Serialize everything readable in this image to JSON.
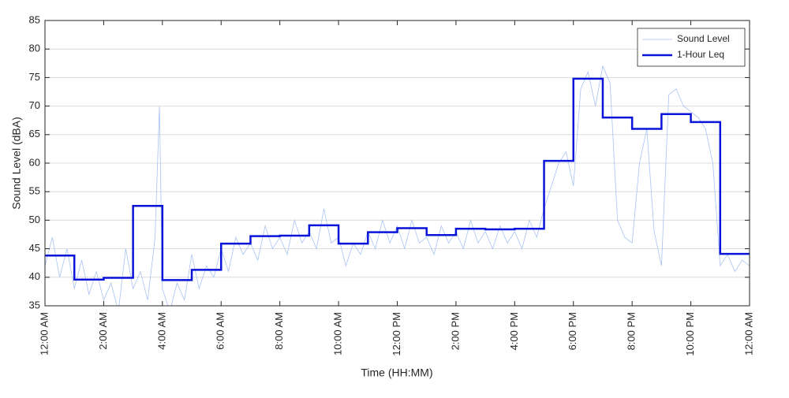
{
  "chart_data": {
    "type": "line",
    "xlabel": "Time (HH:MM)",
    "ylabel": "Sound Level (dBA)",
    "xlim": [
      0,
      24
    ],
    "xticks": [
      {
        "value": 0,
        "label": "12:00 AM"
      },
      {
        "value": 2,
        "label": "2:00 AM"
      },
      {
        "value": 4,
        "label": "4:00 AM"
      },
      {
        "value": 6,
        "label": "6:00 AM"
      },
      {
        "value": 8,
        "label": "8:00 AM"
      },
      {
        "value": 10,
        "label": "10:00 AM"
      },
      {
        "value": 12,
        "label": "12:00 PM"
      },
      {
        "value": 14,
        "label": "2:00 PM"
      },
      {
        "value": 16,
        "label": "4:00 PM"
      },
      {
        "value": 18,
        "label": "6:00 PM"
      },
      {
        "value": 20,
        "label": "8:00 PM"
      },
      {
        "value": 22,
        "label": "10:00 PM"
      },
      {
        "value": 24,
        "label": "12:00 AM"
      }
    ],
    "ylim": [
      35,
      85
    ],
    "yticks": [
      35,
      40,
      45,
      50,
      55,
      60,
      65,
      70,
      75,
      80,
      85
    ],
    "grid": true,
    "legend": "upper right",
    "series": [
      {
        "name": "Sound Level",
        "color": "#a9c3f3",
        "width": 0.8,
        "x": [
          0,
          0.25,
          0.5,
          0.75,
          1,
          1.25,
          1.5,
          1.75,
          2,
          2.25,
          2.5,
          2.75,
          3,
          3.25,
          3.5,
          3.75,
          3.9,
          4,
          4.25,
          4.5,
          4.75,
          5,
          5.25,
          5.5,
          5.75,
          6,
          6.25,
          6.5,
          6.75,
          7,
          7.25,
          7.5,
          7.75,
          8,
          8.25,
          8.5,
          8.75,
          9,
          9.25,
          9.5,
          9.75,
          10,
          10.25,
          10.5,
          10.75,
          11,
          11.25,
          11.5,
          11.75,
          12,
          12.25,
          12.5,
          12.75,
          13,
          13.25,
          13.5,
          13.75,
          14,
          14.25,
          14.5,
          14.75,
          15,
          15.25,
          15.5,
          15.75,
          16,
          16.25,
          16.5,
          16.75,
          17,
          17.25,
          17.5,
          17.75,
          18,
          18.25,
          18.5,
          18.75,
          19,
          19.25,
          19.5,
          19.75,
          20,
          20.25,
          20.5,
          20.75,
          21,
          21.25,
          21.5,
          21.75,
          22,
          22.25,
          22.5,
          22.75,
          23,
          23.25,
          23.5,
          23.75,
          24
        ],
        "values": [
          42,
          47,
          40,
          45,
          38,
          43,
          37,
          41,
          36,
          39,
          34,
          45,
          38,
          41,
          36,
          47,
          70,
          38,
          34,
          39,
          36,
          44,
          38,
          42,
          40,
          45,
          41,
          47,
          44,
          46,
          43,
          49,
          45,
          47,
          44,
          50,
          46,
          48,
          45,
          52,
          46,
          47,
          42,
          46,
          44,
          48,
          45,
          50,
          46,
          49,
          45,
          50,
          46,
          47,
          44,
          49,
          46,
          48,
          45,
          50,
          46,
          48,
          45,
          49,
          46,
          48,
          45,
          50,
          47,
          52,
          56,
          60,
          62,
          56,
          73,
          76,
          70,
          77,
          74,
          50,
          47,
          46,
          60,
          66,
          48,
          42,
          72,
          73,
          70,
          69,
          68,
          66,
          60,
          42,
          44,
          41,
          43,
          42
        ]
      },
      {
        "name": "1-Hour Leq",
        "color": "#0a14d8",
        "width": 2.5,
        "step": "post",
        "x": [
          0,
          1,
          2,
          3,
          4,
          5,
          6,
          7,
          8,
          9,
          10,
          11,
          12,
          13,
          14,
          15,
          16,
          17,
          18,
          19,
          20,
          21,
          22,
          23
        ],
        "values": [
          43.8,
          39.6,
          39.9,
          52.5,
          39.5,
          41.3,
          45.9,
          47.2,
          47.3,
          49.1,
          45.9,
          47.9,
          48.6,
          47.4,
          48.5,
          48.4,
          48.5,
          60.4,
          74.8,
          68.0,
          66.0,
          68.6,
          67.2,
          44.1
        ]
      }
    ]
  }
}
